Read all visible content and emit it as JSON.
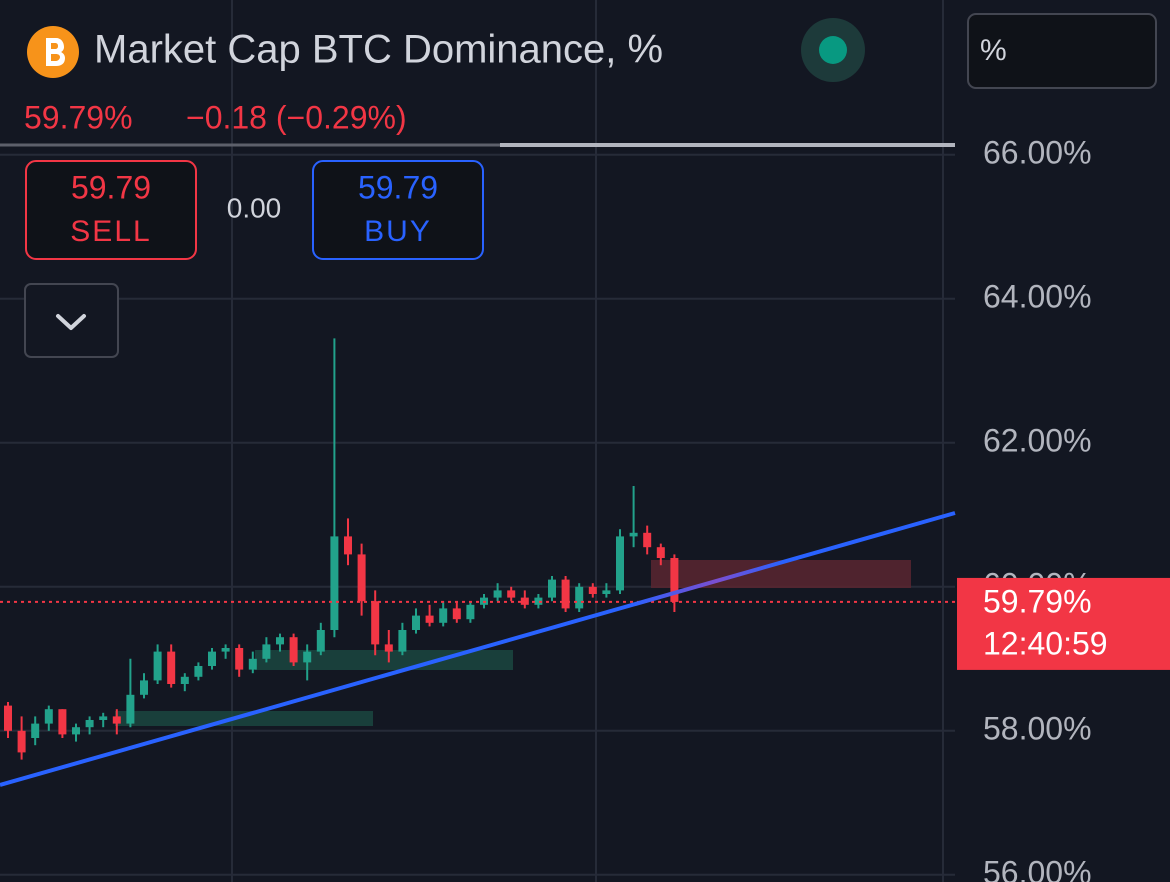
{
  "header": {
    "title": "Market Cap BTC Dominance, %",
    "price": "59.79%",
    "change": "−0.18 (−0.29%)",
    "sell_price": "59.79",
    "sell_label": "SELL",
    "spread": "0.00",
    "buy_price": "59.79",
    "buy_label": "BUY",
    "unit_box": "%"
  },
  "chart_data": {
    "type": "candlestick",
    "up_color": "#22a28b",
    "down_color": "#f23645",
    "ylim": [
      55.9,
      68.15
    ],
    "yticks": [
      {
        "value": 56,
        "label": "56.00%"
      },
      {
        "value": 58,
        "label": "58.00%"
      },
      {
        "value": 60,
        "label": "60.00%"
      },
      {
        "value": 62,
        "label": "62.00%"
      },
      {
        "value": 64,
        "label": "64.00%"
      },
      {
        "value": 66,
        "label": "66.00%"
      }
    ],
    "grid": true,
    "open": [
      58.35,
      58.0,
      57.9,
      58.1,
      58.3,
      57.95,
      58.05,
      58.15,
      58.2,
      58.1,
      58.5,
      58.7,
      59.1,
      58.65,
      58.75,
      58.9,
      59.1,
      59.15,
      58.85,
      59.0,
      59.2,
      59.3,
      58.95,
      59.1,
      59.4,
      60.7,
      60.45,
      59.8,
      59.2,
      59.1,
      59.4,
      59.6,
      59.5,
      59.7,
      59.55,
      59.75,
      59.85,
      59.95,
      59.85,
      59.75,
      59.85,
      60.1,
      59.7,
      60.0,
      59.9,
      59.95,
      60.7,
      60.75,
      60.55,
      60.4
    ],
    "high": [
      58.4,
      58.2,
      58.2,
      58.35,
      58.3,
      58.1,
      58.2,
      58.25,
      58.3,
      59.0,
      58.8,
      59.2,
      59.2,
      58.8,
      58.95,
      59.15,
      59.2,
      59.2,
      59.1,
      59.3,
      59.35,
      59.35,
      59.2,
      59.5,
      63.45,
      60.95,
      60.6,
      59.95,
      59.4,
      59.5,
      59.7,
      59.75,
      59.8,
      59.8,
      59.8,
      59.9,
      60.05,
      60.0,
      59.95,
      59.9,
      60.15,
      60.15,
      60.05,
      60.05,
      60.05,
      60.8,
      61.4,
      60.85,
      60.6,
      60.45
    ],
    "low": [
      57.9,
      57.6,
      57.8,
      58.0,
      57.9,
      57.85,
      57.95,
      58.05,
      57.95,
      58.05,
      58.45,
      58.65,
      58.6,
      58.55,
      58.7,
      58.85,
      59.0,
      58.75,
      58.8,
      58.95,
      59.1,
      58.9,
      58.7,
      59.05,
      59.3,
      60.3,
      59.6,
      59.05,
      58.95,
      59.05,
      59.35,
      59.45,
      59.45,
      59.5,
      59.5,
      59.7,
      59.8,
      59.8,
      59.7,
      59.7,
      59.8,
      59.65,
      59.65,
      59.85,
      59.85,
      59.9,
      60.55,
      60.45,
      60.3,
      59.65
    ],
    "close": [
      58.0,
      57.7,
      58.1,
      58.3,
      57.95,
      58.05,
      58.15,
      58.2,
      58.1,
      58.5,
      58.7,
      59.1,
      58.65,
      58.75,
      58.9,
      59.1,
      59.15,
      58.85,
      59.0,
      59.2,
      59.3,
      58.95,
      59.1,
      59.4,
      60.7,
      60.45,
      59.8,
      59.2,
      59.1,
      59.4,
      59.6,
      59.5,
      59.7,
      59.55,
      59.75,
      59.85,
      59.95,
      59.85,
      59.75,
      59.85,
      60.1,
      59.7,
      60.0,
      59.9,
      59.95,
      60.7,
      60.75,
      60.55,
      60.4,
      59.79
    ],
    "last_price": {
      "value": 59.79,
      "label": "59.79%"
    },
    "countdown": "12:40:59"
  }
}
